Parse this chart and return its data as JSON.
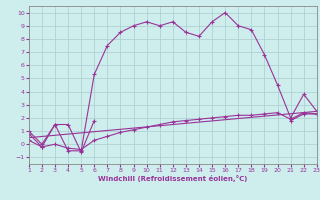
{
  "xlabel": "Windchill (Refroidissement éolien,°C)",
  "bg_color": "#cdeeed",
  "grid_color": "#aacccc",
  "line_color": "#993399",
  "xlim": [
    1,
    23
  ],
  "ylim": [
    -1.5,
    10.5
  ],
  "x_ticks": [
    1,
    2,
    3,
    4,
    5,
    6,
    7,
    8,
    9,
    10,
    11,
    12,
    13,
    14,
    15,
    16,
    17,
    18,
    19,
    20,
    21,
    22,
    23
  ],
  "y_ticks": [
    -1,
    0,
    1,
    2,
    3,
    4,
    5,
    6,
    7,
    8,
    9,
    10
  ],
  "series0": {
    "x": [
      1,
      2,
      3,
      4,
      5,
      6,
      7,
      8,
      9,
      10,
      11,
      12,
      13,
      14,
      15,
      16,
      17,
      18,
      19,
      20,
      21,
      22,
      23
    ],
    "y": [
      1.0,
      0.0,
      1.5,
      -0.5,
      -0.5,
      5.3,
      7.5,
      8.5,
      9.0,
      9.3,
      9.0,
      9.3,
      8.5,
      8.2,
      9.3,
      10.0,
      9.0,
      8.7,
      6.8,
      4.5,
      2.0,
      3.8,
      2.5
    ]
  },
  "series1_left": {
    "x": [
      1,
      2,
      3,
      4,
      5,
      6
    ],
    "y": [
      0.8,
      -0.2,
      1.5,
      1.5,
      -0.6,
      1.8
    ]
  },
  "series1_right": {
    "x": [
      21,
      22,
      23
    ],
    "y": [
      1.8,
      2.3,
      2.3
    ]
  },
  "series2": {
    "x": [
      1,
      2,
      3,
      4,
      5,
      6,
      7,
      8,
      9,
      10,
      11,
      12,
      13,
      14,
      15,
      16,
      17,
      18,
      19,
      20,
      21,
      22,
      23
    ],
    "y": [
      0.3,
      -0.2,
      0.0,
      -0.3,
      -0.4,
      0.3,
      0.6,
      0.9,
      1.1,
      1.3,
      1.5,
      1.7,
      1.8,
      1.9,
      2.0,
      2.1,
      2.2,
      2.2,
      2.3,
      2.4,
      1.9,
      2.4,
      2.3
    ]
  },
  "series3": {
    "x": [
      1,
      23
    ],
    "y": [
      0.5,
      2.5
    ]
  }
}
